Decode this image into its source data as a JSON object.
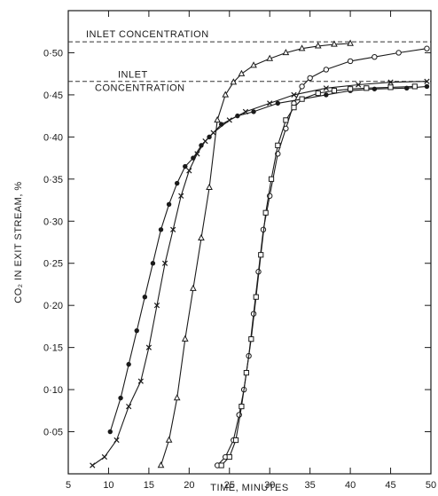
{
  "chart_data": {
    "type": "line",
    "xlabel": "TIME, MINUTES",
    "ylabel": "CO₂ IN EXIT STREAM, %",
    "xlim": [
      5,
      50
    ],
    "ylim": [
      0,
      0.55
    ],
    "xticks": [
      5,
      10,
      15,
      20,
      25,
      30,
      35,
      40,
      45,
      50
    ],
    "xtick_labels": [
      "5",
      "10",
      "15",
      "20",
      "25",
      "30",
      "35",
      "40",
      "45",
      "50"
    ],
    "yticks": [
      0.05,
      0.1,
      0.15,
      0.2,
      0.25,
      0.3,
      0.35,
      0.4,
      0.45,
      0.5
    ],
    "ytick_labels": [
      "0·05",
      "0·10",
      "0·15",
      "0·20",
      "0·25",
      "0·30",
      "0·35",
      "0·40",
      "0·45",
      "0·50"
    ],
    "grid": false,
    "reference_lines": [
      {
        "label": "INLET CONCENTRATION",
        "y": 0.513,
        "style": "dashed"
      },
      {
        "label_lines": [
          "INLET",
          "CONCENTRATION"
        ],
        "y": 0.466,
        "style": "dashed"
      }
    ],
    "series": [
      {
        "marker": "filled-circle",
        "x": [
          10.2,
          11.5,
          12.5,
          13.5,
          14.5,
          15.5,
          16.5,
          17.5,
          18.5,
          19.5,
          20.5,
          21.5,
          22.5,
          24,
          26,
          28,
          31,
          34,
          37,
          40,
          43,
          47,
          49.5
        ],
        "y": [
          0.05,
          0.09,
          0.13,
          0.17,
          0.21,
          0.25,
          0.29,
          0.32,
          0.345,
          0.365,
          0.375,
          0.39,
          0.4,
          0.415,
          0.425,
          0.43,
          0.44,
          0.445,
          0.45,
          0.455,
          0.457,
          0.458,
          0.46
        ]
      },
      {
        "marker": "x-cross",
        "x": [
          8,
          9.5,
          11,
          12.5,
          14,
          15,
          16,
          17,
          18,
          19,
          20,
          21,
          22,
          23,
          25,
          27,
          30,
          33,
          37,
          41,
          45,
          49.5
        ],
        "y": [
          0.01,
          0.02,
          0.04,
          0.08,
          0.11,
          0.15,
          0.2,
          0.25,
          0.29,
          0.33,
          0.36,
          0.38,
          0.395,
          0.405,
          0.42,
          0.43,
          0.44,
          0.45,
          0.458,
          0.462,
          0.465,
          0.466
        ]
      },
      {
        "marker": "open-triangle",
        "x": [
          16.5,
          17.5,
          18.5,
          19.5,
          20.5,
          21.5,
          22.5,
          23.5,
          24.5,
          25.5,
          26.5,
          28,
          30,
          32,
          34,
          36,
          38,
          40
        ],
        "y": [
          0.01,
          0.04,
          0.09,
          0.16,
          0.22,
          0.28,
          0.34,
          0.42,
          0.45,
          0.465,
          0.475,
          0.485,
          0.493,
          0.5,
          0.505,
          0.508,
          0.51,
          0.511
        ]
      },
      {
        "marker": "open-circle",
        "x": [
          23.5,
          24.5,
          25.5,
          26.2,
          26.8,
          27.4,
          28,
          28.6,
          29.2,
          30,
          31,
          32,
          33,
          34,
          35,
          37,
          40,
          43,
          46,
          49.5
        ],
        "y": [
          0.01,
          0.02,
          0.04,
          0.07,
          0.1,
          0.14,
          0.19,
          0.24,
          0.29,
          0.33,
          0.38,
          0.41,
          0.44,
          0.46,
          0.47,
          0.48,
          0.49,
          0.495,
          0.5,
          0.505
        ]
      },
      {
        "marker": "open-square",
        "x": [
          24,
          25,
          25.8,
          26.5,
          27.1,
          27.7,
          28.3,
          28.9,
          29.5,
          30.2,
          31,
          32,
          33,
          34,
          36,
          38,
          40,
          42,
          45,
          48
        ],
        "y": [
          0.01,
          0.02,
          0.04,
          0.08,
          0.12,
          0.16,
          0.21,
          0.26,
          0.31,
          0.35,
          0.39,
          0.42,
          0.435,
          0.445,
          0.452,
          0.455,
          0.457,
          0.458,
          0.459,
          0.46
        ]
      }
    ]
  }
}
